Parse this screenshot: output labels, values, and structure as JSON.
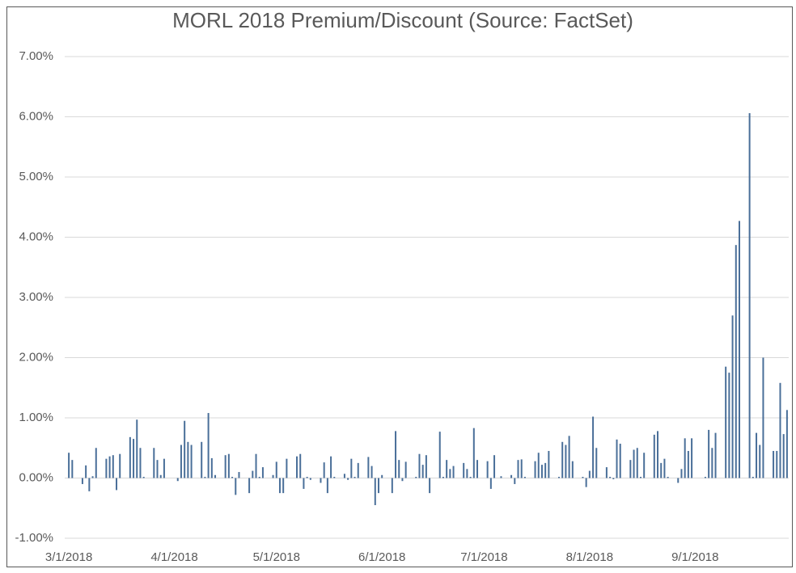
{
  "chart_data": {
    "type": "bar",
    "title": "MORL 2018 Premium/Discount (Source: FactSet)",
    "color": "#4a6f99",
    "grid": true,
    "ylim": [
      -1,
      7
    ],
    "yticks": [
      {
        "value": -1,
        "label": "-1.00%"
      },
      {
        "value": 0,
        "label": "0.00%"
      },
      {
        "value": 1,
        "label": "1.00%"
      },
      {
        "value": 2,
        "label": "2.00%"
      },
      {
        "value": 3,
        "label": "3.00%"
      },
      {
        "value": 4,
        "label": "4.00%"
      },
      {
        "value": 5,
        "label": "5.00%"
      },
      {
        "value": 6,
        "label": "6.00%"
      },
      {
        "value": 7,
        "label": "7.00%"
      }
    ],
    "categories": [
      "3/1/2018",
      null,
      null,
      null,
      null,
      null,
      null,
      null,
      null,
      null,
      null,
      null,
      null,
      null,
      null,
      null,
      null,
      null,
      null,
      null,
      null,
      null,
      null,
      null,
      null,
      null,
      null,
      null,
      null,
      null,
      null,
      "4/1/2018",
      null,
      null,
      null,
      null,
      null,
      null,
      null,
      null,
      null,
      null,
      null,
      null,
      null,
      null,
      null,
      null,
      null,
      null,
      null,
      null,
      null,
      null,
      null,
      null,
      null,
      null,
      null,
      null,
      null,
      "5/1/2018",
      null,
      null,
      null,
      null,
      null,
      null,
      null,
      null,
      null,
      null,
      null,
      null,
      null,
      null,
      null,
      null,
      null,
      null,
      null,
      null,
      null,
      null,
      null,
      null,
      null,
      null,
      null,
      null,
      null,
      null,
      "6/1/2018",
      null,
      null,
      null,
      null,
      null,
      null,
      null,
      null,
      null,
      null,
      null,
      null,
      null,
      null,
      null,
      null,
      null,
      null,
      null,
      null,
      null,
      null,
      null,
      null,
      null,
      null,
      null,
      null,
      null,
      "7/1/2018",
      null,
      null,
      null,
      null,
      null,
      null,
      null,
      null,
      null,
      null,
      null,
      null,
      null,
      null,
      null,
      null,
      null,
      null,
      null,
      null,
      null,
      null,
      null,
      null,
      null,
      null,
      null,
      null,
      null,
      null,
      "8/1/2018",
      null,
      null,
      null,
      null,
      null,
      null,
      null,
      null,
      null,
      null,
      null,
      null,
      null,
      null,
      null,
      null,
      null,
      null,
      null,
      null,
      null,
      null,
      null,
      null,
      null,
      null,
      null,
      null,
      null,
      null,
      "9/1/2018",
      null,
      null,
      null,
      null,
      null,
      null,
      null,
      null,
      null,
      null,
      null,
      null,
      null,
      null,
      null,
      null,
      null,
      null,
      null,
      null,
      null,
      null,
      null,
      null,
      null,
      null,
      null
    ],
    "values": [
      0.42,
      0.3,
      null,
      null,
      -0.1,
      0.21,
      -0.22,
      0.03,
      0.5,
      null,
      null,
      0.32,
      0.36,
      0.38,
      -0.2,
      0.4,
      null,
      null,
      0.68,
      0.65,
      0.97,
      0.5,
      0.02,
      null,
      null,
      0.5,
      0.3,
      0.05,
      0.32,
      null,
      null,
      null,
      -0.05,
      0.55,
      0.95,
      0.6,
      0.55,
      null,
      null,
      0.6,
      0.02,
      1.08,
      0.33,
      0.05,
      null,
      null,
      0.38,
      0.4,
      0.02,
      -0.28,
      0.1,
      null,
      null,
      -0.25,
      0.12,
      0.4,
      0.02,
      0.18,
      null,
      null,
      0.05,
      0.27,
      -0.25,
      -0.25,
      0.32,
      null,
      null,
      0.36,
      0.4,
      -0.18,
      0.02,
      -0.03,
      null,
      null,
      -0.08,
      0.26,
      -0.25,
      0.36,
      0.02,
      null,
      null,
      0.07,
      -0.03,
      0.32,
      0.02,
      0.25,
      null,
      null,
      0.35,
      0.2,
      -0.45,
      -0.25,
      0.05,
      null,
      null,
      -0.25,
      0.78,
      0.3,
      -0.05,
      0.27,
      null,
      null,
      0.02,
      0.4,
      0.22,
      0.38,
      -0.25,
      null,
      null,
      0.77,
      0.02,
      0.3,
      0.15,
      0.2,
      null,
      null,
      0.25,
      0.15,
      0.02,
      0.83,
      0.3,
      null,
      null,
      0.28,
      -0.18,
      0.38,
      null,
      0.03,
      null,
      null,
      0.05,
      -0.1,
      0.3,
      0.31,
      0.02,
      null,
      null,
      0.28,
      0.42,
      0.22,
      0.25,
      0.45,
      null,
      null,
      0.02,
      0.6,
      0.55,
      0.7,
      0.28,
      null,
      null,
      0.02,
      -0.15,
      0.12,
      1.02,
      0.5,
      null,
      null,
      0.18,
      0.02,
      -0.02,
      0.64,
      0.57,
      null,
      null,
      0.3,
      0.47,
      0.5,
      0.02,
      0.42,
      null,
      null,
      0.72,
      0.78,
      0.25,
      0.32,
      0.02,
      null,
      null,
      -0.08,
      0.15,
      0.66,
      0.45,
      0.66,
      null,
      null,
      null,
      0.02,
      0.8,
      0.5,
      0.75,
      null,
      null,
      1.85,
      1.75,
      2.7,
      3.87,
      4.27,
      null,
      null,
      6.06,
      0.02,
      0.75,
      0.55,
      2.0,
      null,
      null,
      0.45,
      0.45,
      1.58,
      0.73,
      1.13
    ]
  }
}
